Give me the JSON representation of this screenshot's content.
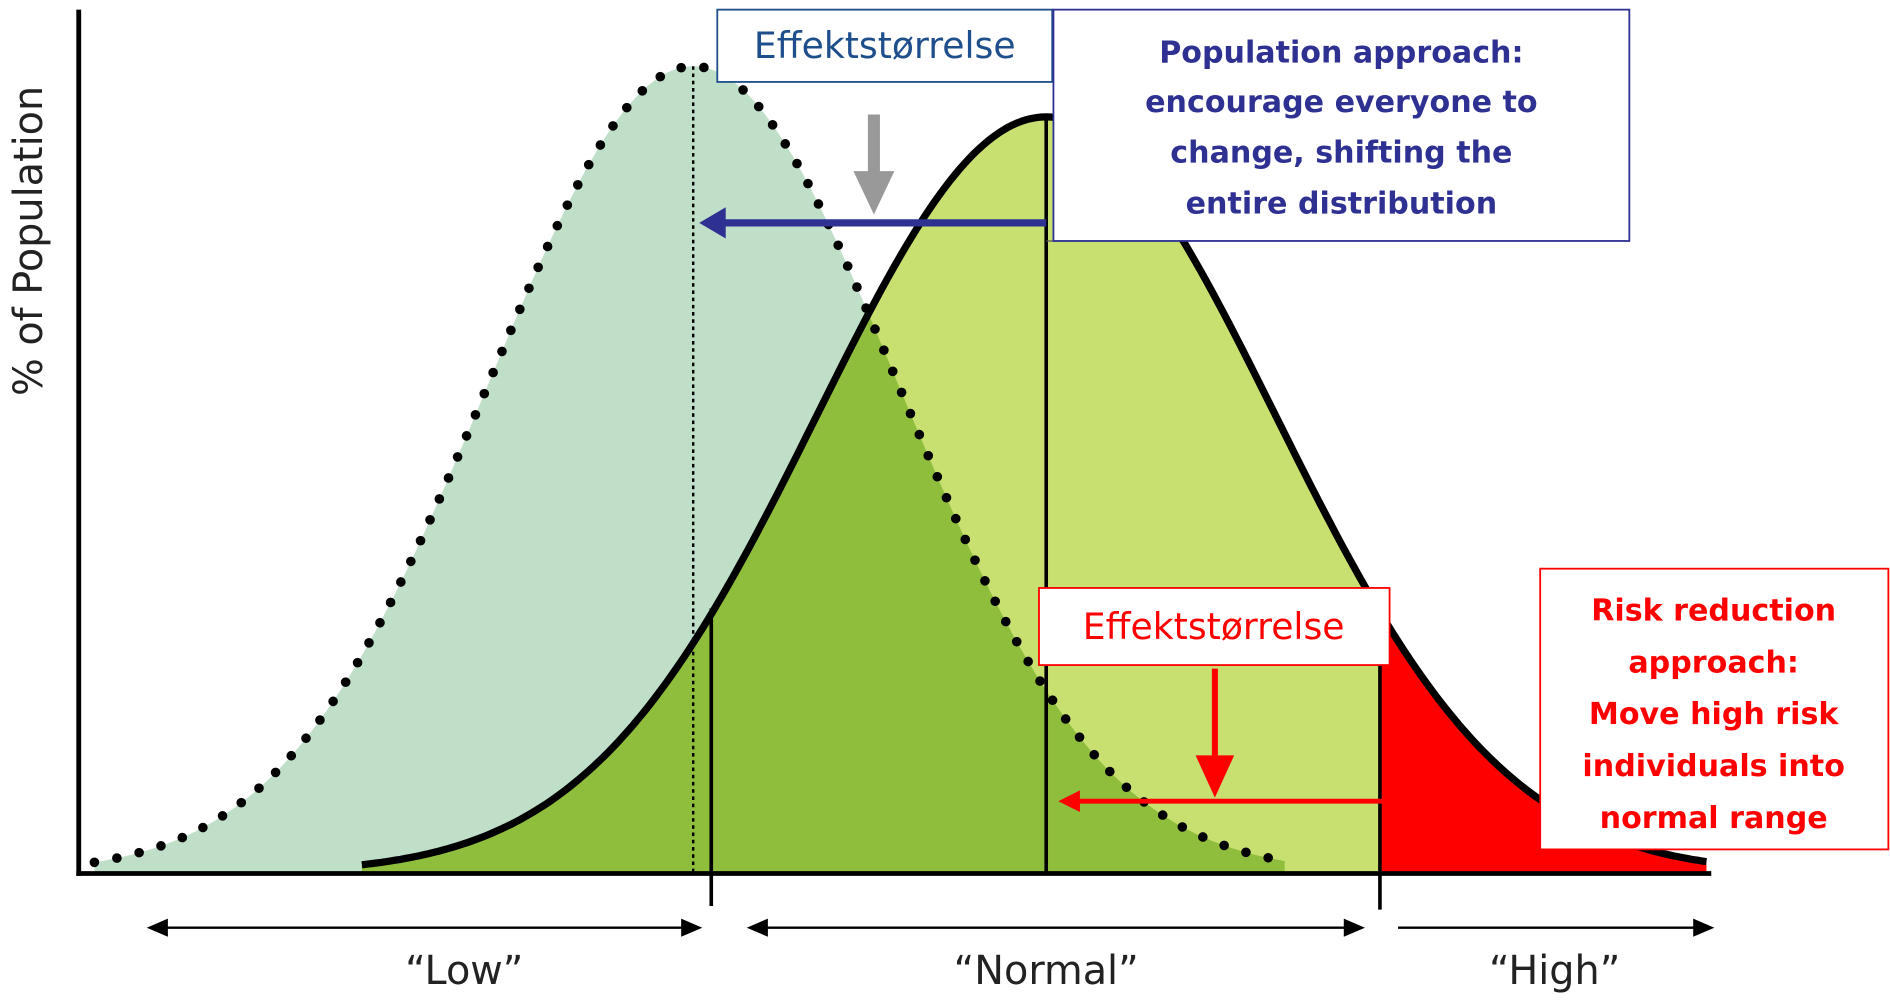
{
  "axis": {
    "y_label": "% of Population"
  },
  "ranges": [
    "“Low”",
    "“Normal”",
    "“High”"
  ],
  "population_approach": {
    "effect_label": "Effektstørrelse",
    "lines": [
      "Population approach:",
      "encourage everyone to",
      "change, shifting the",
      "entire distribution"
    ]
  },
  "risk_reduction_approach": {
    "effect_label": "Effektstørrelse",
    "lines": [
      "Risk reduction",
      "approach:",
      "Move high risk",
      "individuals into",
      "normal range"
    ]
  }
}
